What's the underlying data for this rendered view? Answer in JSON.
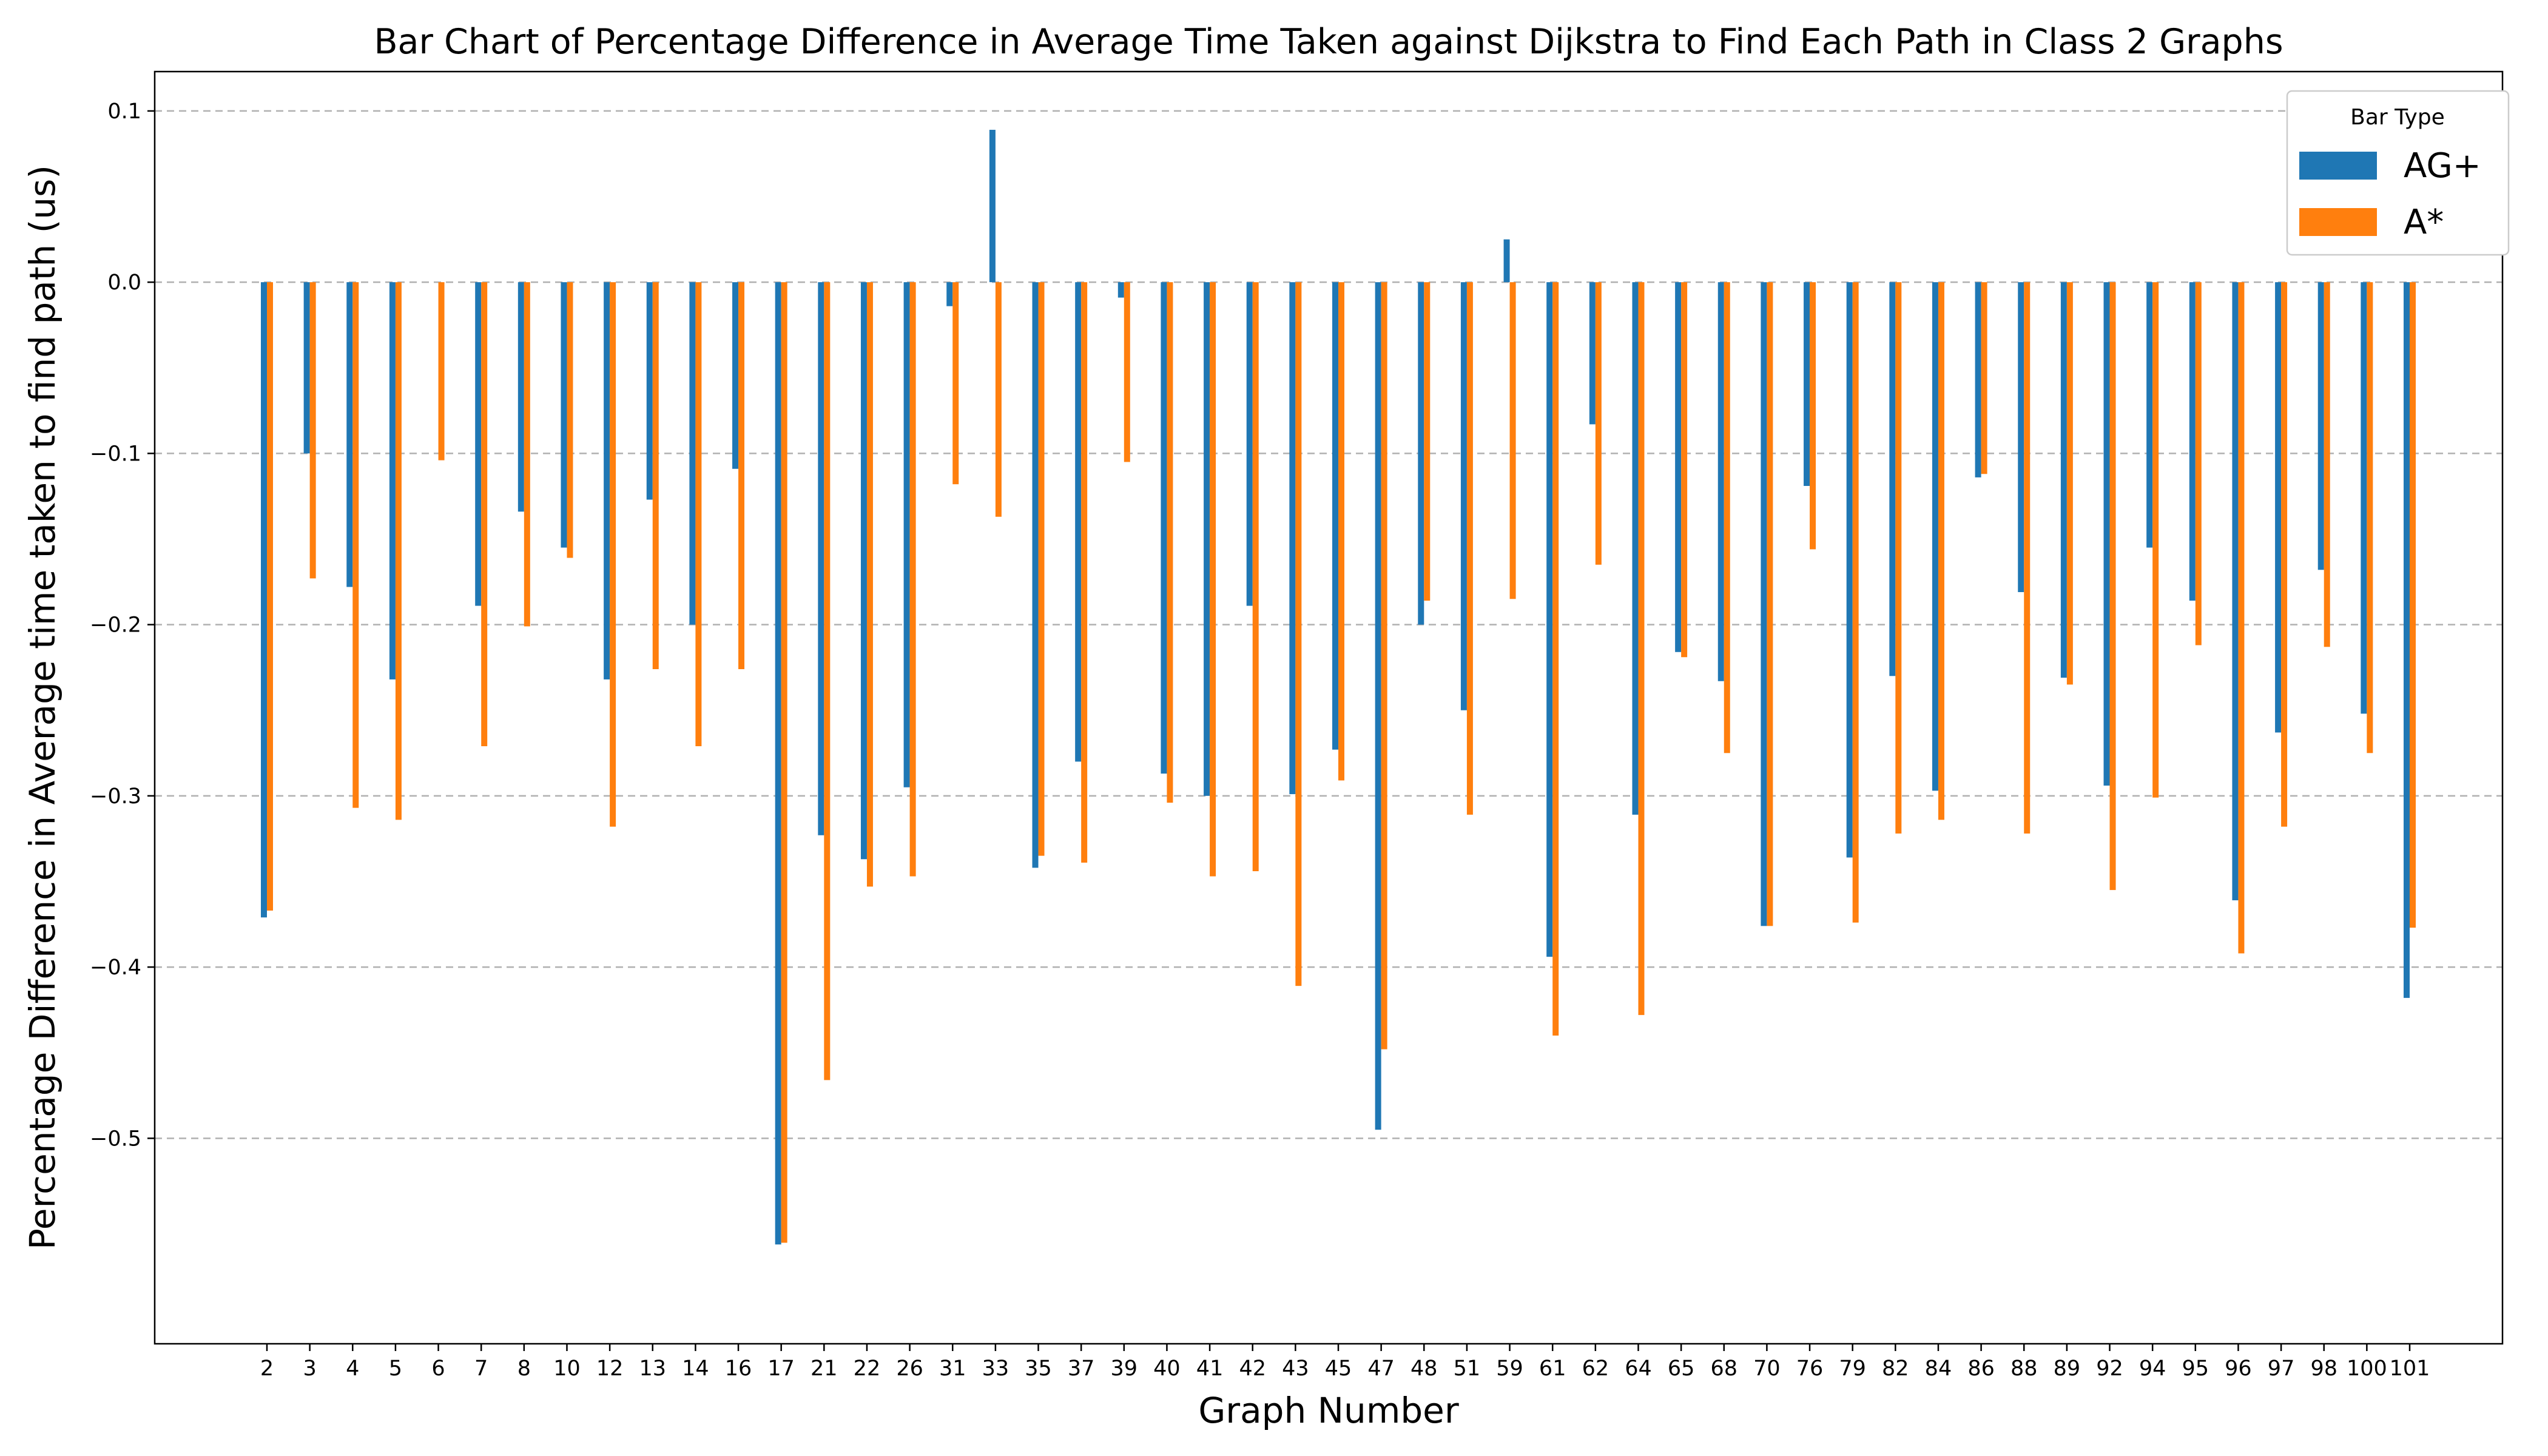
{
  "chart_data": {
    "type": "bar",
    "title": "Bar Chart of Percentage Difference in Average Time Taken against Dijkstra to Find Each Path in Class 2 Graphs",
    "xlabel": "Graph Number",
    "ylabel": "Percentage Difference in Average time taken to find path (us)",
    "ylim": [
      -0.62,
      0.123
    ],
    "yticks": [
      0.1,
      0.0,
      -0.1,
      -0.2,
      -0.3,
      -0.4,
      -0.5
    ],
    "ytick_labels": [
      "0.1",
      "0.0",
      "−0.1",
      "−0.2",
      "−0.3",
      "−0.4",
      "−0.5"
    ],
    "grid": "horizontal dashed",
    "legend_position": "top-right",
    "legend_title": "Bar Type",
    "categories": [
      "2",
      "3",
      "4",
      "5",
      "6",
      "7",
      "8",
      "10",
      "12",
      "13",
      "14",
      "16",
      "17",
      "21",
      "22",
      "26",
      "31",
      "33",
      "35",
      "37",
      "39",
      "40",
      "41",
      "42",
      "43",
      "45",
      "47",
      "48",
      "51",
      "59",
      "61",
      "62",
      "64",
      "65",
      "68",
      "70",
      "76",
      "79",
      "82",
      "84",
      "86",
      "88",
      "89",
      "92",
      "94",
      "95",
      "96",
      "97",
      "98",
      "100",
      "101"
    ],
    "series": [
      {
        "name": "AG+",
        "color": "#1f77b4",
        "values": [
          -0.371,
          -0.1,
          -0.178,
          -0.232,
          0.0,
          -0.189,
          -0.134,
          -0.155,
          -0.232,
          -0.127,
          -0.2,
          -0.109,
          -0.562,
          -0.323,
          -0.337,
          -0.295,
          -0.014,
          0.089,
          -0.342,
          -0.28,
          -0.009,
          -0.287,
          -0.3,
          -0.189,
          -0.299,
          -0.273,
          -0.495,
          -0.2,
          -0.25,
          0.025,
          -0.394,
          -0.083,
          -0.311,
          -0.216,
          -0.233,
          -0.376,
          -0.119,
          -0.336,
          -0.23,
          -0.297,
          -0.114,
          -0.181,
          -0.231,
          -0.294,
          -0.155,
          -0.186,
          -0.361,
          -0.263,
          -0.168,
          -0.252,
          -0.418
        ]
      },
      {
        "name": "A*",
        "color": "#ff7f0e",
        "values": [
          -0.367,
          -0.173,
          -0.307,
          -0.314,
          -0.104,
          -0.271,
          -0.201,
          -0.161,
          -0.318,
          -0.226,
          -0.271,
          -0.226,
          -0.561,
          -0.466,
          -0.353,
          -0.347,
          -0.118,
          -0.137,
          -0.335,
          -0.339,
          -0.105,
          -0.304,
          -0.347,
          -0.344,
          -0.411,
          -0.291,
          -0.448,
          -0.186,
          -0.311,
          -0.185,
          -0.44,
          -0.165,
          -0.428,
          -0.219,
          -0.275,
          -0.376,
          -0.156,
          -0.374,
          -0.322,
          -0.314,
          -0.112,
          -0.322,
          -0.235,
          -0.355,
          -0.301,
          -0.212,
          -0.392,
          -0.318,
          -0.213,
          -0.275,
          -0.377
        ]
      }
    ]
  }
}
